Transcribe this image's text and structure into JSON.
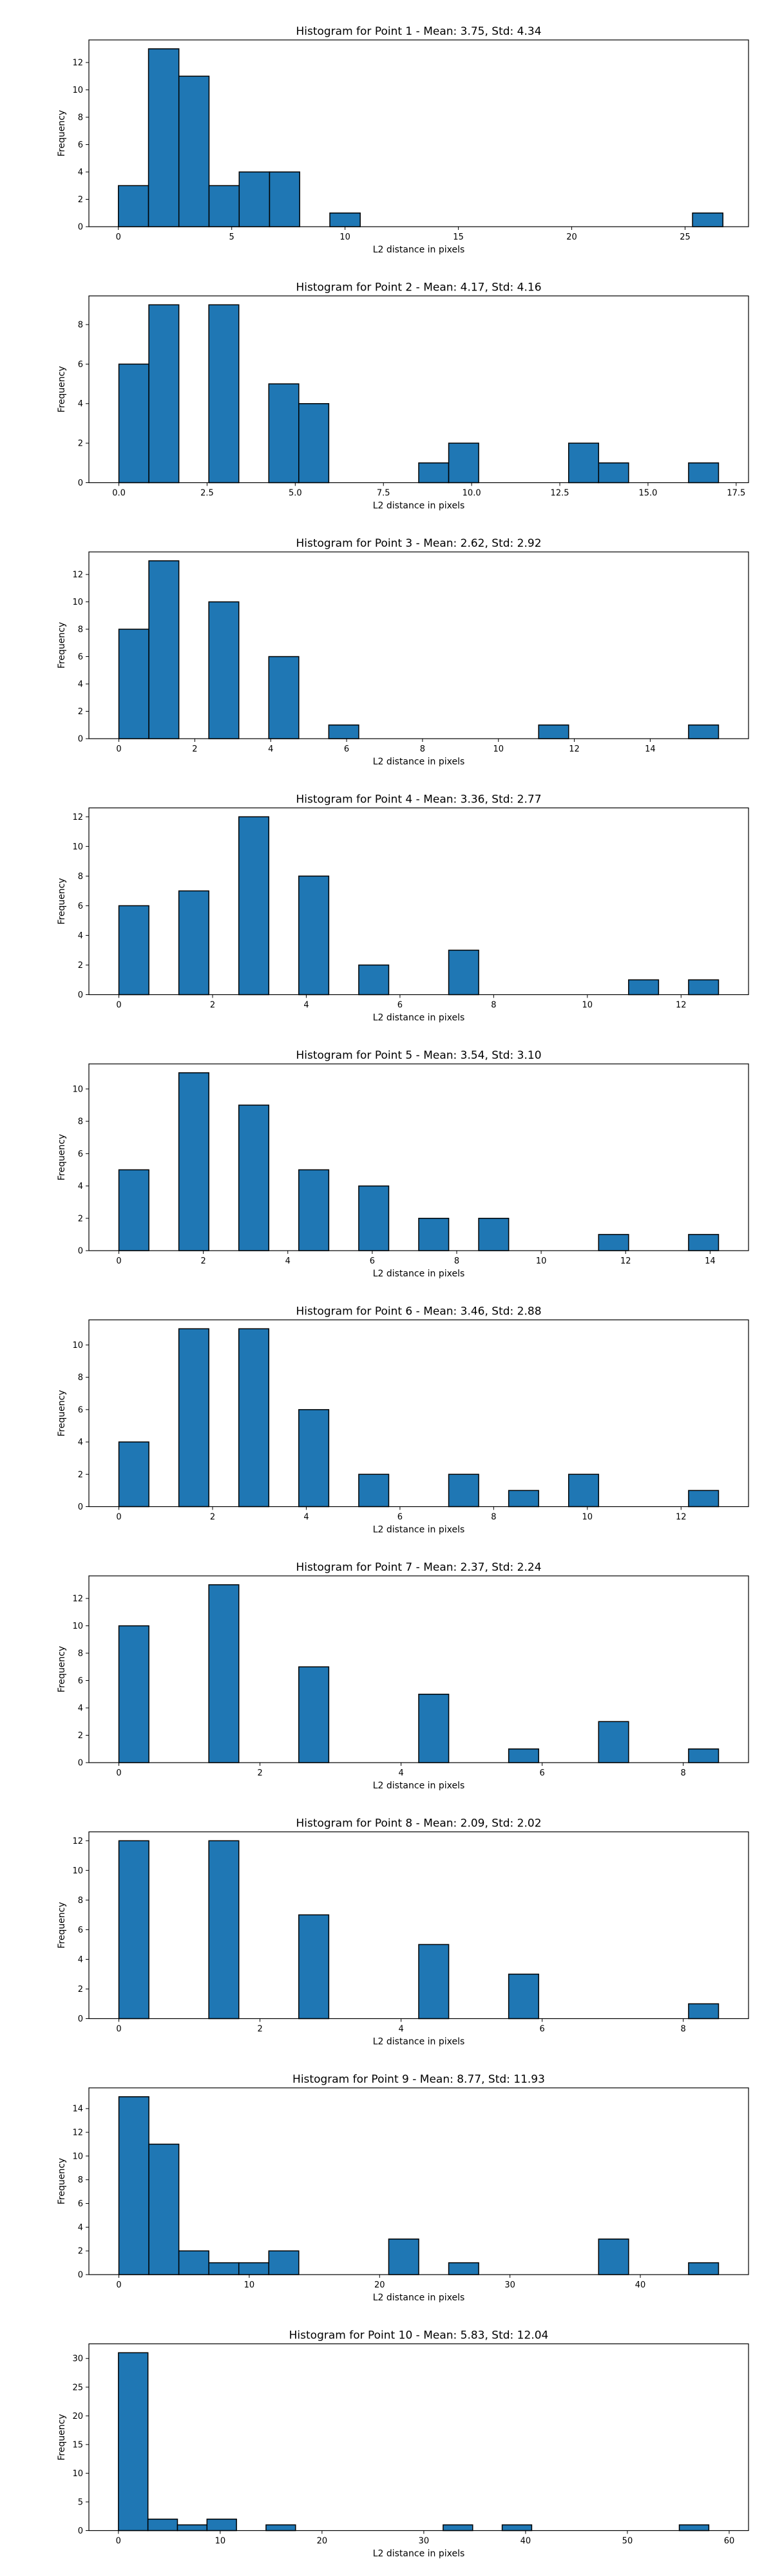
{
  "figure": {
    "bar_color": "#1f77b4",
    "edge_color": "#000000",
    "xlabel": "L2 distance in pixels",
    "ylabel": "Frequency"
  },
  "chart_data": [
    {
      "type": "bar",
      "title": "Histogram for Point 1 - Mean: 3.75, Std: 4.34",
      "xlabel": "L2 distance in pixels",
      "ylabel": "Frequency",
      "xlim": [
        -1.3,
        27.8
      ],
      "ylim": [
        0,
        13.65
      ],
      "xticks": [
        0,
        5,
        10,
        15,
        20,
        25
      ],
      "xtick_labels": [
        "0",
        "5",
        "10",
        "15",
        "20",
        "25"
      ],
      "yticks": [
        0,
        2,
        4,
        6,
        8,
        10,
        12
      ],
      "bins": [
        [
          0,
          1.33
        ],
        [
          1.33,
          2.67
        ],
        [
          2.67,
          4.0
        ],
        [
          4.0,
          5.33
        ],
        [
          5.33,
          6.67
        ],
        [
          6.67,
          8.0
        ],
        [
          9.33,
          10.67
        ],
        [
          25.33,
          26.67
        ]
      ],
      "values": [
        3,
        13,
        11,
        3,
        4,
        4,
        1,
        1
      ]
    },
    {
      "type": "bar",
      "title": "Histogram for Point 2 - Mean: 4.17, Std: 4.16",
      "xlabel": "L2 distance in pixels",
      "ylabel": "Frequency",
      "xlim": [
        -0.85,
        17.85
      ],
      "ylim": [
        0,
        9.45
      ],
      "xticks": [
        0,
        2.5,
        5,
        7.5,
        10,
        12.5,
        15,
        17.5
      ],
      "xtick_labels": [
        "0.0",
        "2.5",
        "5.0",
        "7.5",
        "10.0",
        "12.5",
        "15.0",
        "17.5"
      ],
      "yticks": [
        0,
        2,
        4,
        6,
        8
      ],
      "bins": [
        [
          0,
          0.85
        ],
        [
          0.85,
          1.7
        ],
        [
          2.55,
          3.4
        ],
        [
          4.25,
          5.1
        ],
        [
          5.1,
          5.95
        ],
        [
          8.5,
          9.35
        ],
        [
          9.35,
          10.2
        ],
        [
          12.75,
          13.6
        ],
        [
          13.6,
          14.45
        ],
        [
          16.15,
          17.0
        ]
      ],
      "values": [
        6,
        9,
        9,
        5,
        4,
        1,
        2,
        2,
        1,
        1
      ]
    },
    {
      "type": "bar",
      "title": "Histogram for Point 3 - Mean: 2.62, Std: 2.92",
      "xlabel": "L2 distance in pixels",
      "ylabel": "Frequency",
      "xlim": [
        -0.79,
        16.59
      ],
      "ylim": [
        0,
        13.65
      ],
      "xticks": [
        0,
        2,
        4,
        6,
        8,
        10,
        12,
        14
      ],
      "xtick_labels": [
        "0",
        "2",
        "4",
        "6",
        "8",
        "10",
        "12",
        "14"
      ],
      "yticks": [
        0,
        2,
        4,
        6,
        8,
        10,
        12
      ],
      "bins": [
        [
          0,
          0.79
        ],
        [
          0.79,
          1.58
        ],
        [
          2.37,
          3.16
        ],
        [
          3.95,
          4.74
        ],
        [
          5.53,
          6.32
        ],
        [
          11.06,
          11.85
        ],
        [
          15.01,
          15.8
        ]
      ],
      "values": [
        8,
        13,
        10,
        6,
        1,
        1,
        1
      ]
    },
    {
      "type": "bar",
      "title": "Histogram for Point 4 - Mean: 3.36, Std: 2.77",
      "xlabel": "L2 distance in pixels",
      "ylabel": "Frequency",
      "xlim": [
        -0.64,
        13.44
      ],
      "ylim": [
        0,
        12.6
      ],
      "xticks": [
        0,
        2,
        4,
        6,
        8,
        10,
        12
      ],
      "xtick_labels": [
        "0",
        "2",
        "4",
        "6",
        "8",
        "10",
        "12"
      ],
      "yticks": [
        0,
        2,
        4,
        6,
        8,
        10,
        12
      ],
      "bins": [
        [
          0,
          0.64
        ],
        [
          1.28,
          1.92
        ],
        [
          2.56,
          3.2
        ],
        [
          3.84,
          4.48
        ],
        [
          5.12,
          5.76
        ],
        [
          7.04,
          7.68
        ],
        [
          10.88,
          11.52
        ],
        [
          12.16,
          12.8
        ]
      ],
      "values": [
        6,
        7,
        12,
        8,
        2,
        3,
        1,
        1
      ]
    },
    {
      "type": "bar",
      "title": "Histogram for Point 5 - Mean: 3.54, Std: 3.10",
      "xlabel": "L2 distance in pixels",
      "ylabel": "Frequency",
      "xlim": [
        -0.71,
        14.91
      ],
      "ylim": [
        0,
        11.55
      ],
      "xticks": [
        0,
        2,
        4,
        6,
        8,
        10,
        12,
        14
      ],
      "xtick_labels": [
        "0",
        "2",
        "4",
        "6",
        "8",
        "10",
        "12",
        "14"
      ],
      "yticks": [
        0,
        2,
        4,
        6,
        8,
        10
      ],
      "bins": [
        [
          0,
          0.71
        ],
        [
          1.42,
          2.13
        ],
        [
          2.84,
          3.55
        ],
        [
          4.26,
          4.97
        ],
        [
          5.68,
          6.39
        ],
        [
          7.1,
          7.81
        ],
        [
          8.52,
          9.23
        ],
        [
          11.36,
          12.07
        ],
        [
          13.49,
          14.2
        ]
      ],
      "values": [
        5,
        11,
        9,
        5,
        4,
        2,
        2,
        1,
        1
      ]
    },
    {
      "type": "bar",
      "title": "Histogram for Point 6 - Mean: 3.46, Std: 2.88",
      "xlabel": "L2 distance in pixels",
      "ylabel": "Frequency",
      "xlim": [
        -0.64,
        13.44
      ],
      "ylim": [
        0,
        11.55
      ],
      "xticks": [
        0,
        2,
        4,
        6,
        8,
        10,
        12
      ],
      "xtick_labels": [
        "0",
        "2",
        "4",
        "6",
        "8",
        "10",
        "12"
      ],
      "yticks": [
        0,
        2,
        4,
        6,
        8,
        10
      ],
      "bins": [
        [
          0,
          0.64
        ],
        [
          1.28,
          1.92
        ],
        [
          2.56,
          3.2
        ],
        [
          3.84,
          4.48
        ],
        [
          5.12,
          5.76
        ],
        [
          7.04,
          7.68
        ],
        [
          8.32,
          8.96
        ],
        [
          9.6,
          10.24
        ],
        [
          12.16,
          12.8
        ]
      ],
      "values": [
        4,
        11,
        11,
        6,
        2,
        2,
        1,
        2,
        1
      ]
    },
    {
      "type": "bar",
      "title": "Histogram for Point 7 - Mean: 2.37, Std: 2.24",
      "xlabel": "L2 distance in pixels",
      "ylabel": "Frequency",
      "xlim": [
        -0.425,
        8.925
      ],
      "ylim": [
        0,
        13.65
      ],
      "xticks": [
        0,
        2,
        4,
        6,
        8
      ],
      "xtick_labels": [
        "0",
        "2",
        "4",
        "6",
        "8"
      ],
      "yticks": [
        0,
        2,
        4,
        6,
        8,
        10,
        12
      ],
      "bins": [
        [
          0,
          0.425
        ],
        [
          1.275,
          1.7
        ],
        [
          2.55,
          2.975
        ],
        [
          4.25,
          4.675
        ],
        [
          5.525,
          5.95
        ],
        [
          6.8,
          7.225
        ],
        [
          8.075,
          8.5
        ]
      ],
      "values": [
        10,
        13,
        7,
        5,
        1,
        3,
        1
      ]
    },
    {
      "type": "bar",
      "title": "Histogram for Point 8 - Mean: 2.09, Std: 2.02",
      "xlabel": "L2 distance in pixels",
      "ylabel": "Frequency",
      "xlim": [
        -0.425,
        8.925
      ],
      "ylim": [
        0,
        12.6
      ],
      "xticks": [
        0,
        2,
        4,
        6,
        8
      ],
      "xtick_labels": [
        "0",
        "2",
        "4",
        "6",
        "8"
      ],
      "yticks": [
        0,
        2,
        4,
        6,
        8,
        10,
        12
      ],
      "bins": [
        [
          0,
          0.425
        ],
        [
          1.275,
          1.7
        ],
        [
          2.55,
          2.975
        ],
        [
          4.25,
          4.675
        ],
        [
          5.525,
          5.95
        ],
        [
          8.075,
          8.5
        ]
      ],
      "values": [
        12,
        12,
        7,
        5,
        3,
        1
      ]
    },
    {
      "type": "bar",
      "title": "Histogram for Point 9 - Mean: 8.77, Std: 11.93",
      "xlabel": "L2 distance in pixels",
      "ylabel": "Frequency",
      "xlim": [
        -2.3,
        48.3
      ],
      "ylim": [
        0,
        15.75
      ],
      "xticks": [
        0,
        10,
        20,
        30,
        40
      ],
      "xtick_labels": [
        "0",
        "10",
        "20",
        "30",
        "40"
      ],
      "yticks": [
        0,
        2,
        4,
        6,
        8,
        10,
        12,
        14
      ],
      "bins": [
        [
          0,
          2.3
        ],
        [
          2.3,
          4.6
        ],
        [
          4.6,
          6.9
        ],
        [
          6.9,
          9.2
        ],
        [
          9.2,
          11.5
        ],
        [
          11.5,
          13.8
        ],
        [
          20.7,
          23.0
        ],
        [
          25.3,
          27.6
        ],
        [
          36.8,
          39.1
        ],
        [
          43.7,
          46.0
        ]
      ],
      "values": [
        15,
        11,
        2,
        1,
        1,
        2,
        3,
        1,
        3,
        1
      ]
    },
    {
      "type": "bar",
      "title": "Histogram for Point 10 - Mean: 5.83, Std: 12.04",
      "xlabel": "L2 distance in pixels",
      "ylabel": "Frequency",
      "xlim": [
        -2.9,
        61.9
      ],
      "ylim": [
        0,
        32.55
      ],
      "xticks": [
        0,
        10,
        20,
        30,
        40,
        50,
        60
      ],
      "xtick_labels": [
        "0",
        "10",
        "20",
        "30",
        "40",
        "50",
        "60"
      ],
      "yticks": [
        0,
        5,
        10,
        15,
        20,
        25,
        30
      ],
      "bins": [
        [
          0,
          2.9
        ],
        [
          2.9,
          5.8
        ],
        [
          5.8,
          8.7
        ],
        [
          8.7,
          11.6
        ],
        [
          14.5,
          17.4
        ],
        [
          31.9,
          34.8
        ],
        [
          37.7,
          40.6
        ],
        [
          55.1,
          58.0
        ]
      ],
      "values": [
        31,
        2,
        1,
        2,
        1,
        1,
        1,
        1
      ]
    }
  ]
}
